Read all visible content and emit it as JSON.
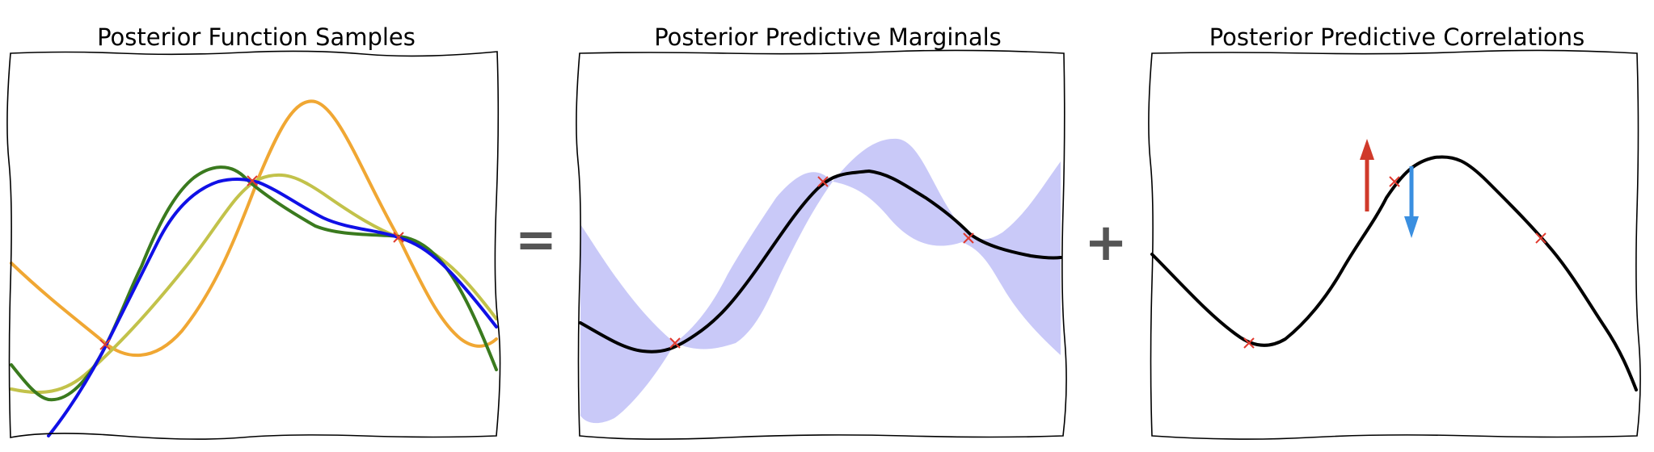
{
  "panels": {
    "samples": {
      "title": "Posterior Function Samples"
    },
    "marginals": {
      "title": "Posterior Predictive Marginals"
    },
    "correlations": {
      "title": "Posterior Predictive Correlations"
    }
  },
  "operators": {
    "equals": "=",
    "plus": "+"
  },
  "colors": {
    "sample_blue": "#1010e6",
    "sample_green": "#3a7a1e",
    "sample_olive": "#c2c24a",
    "sample_orange": "#f0a733",
    "mean": "#000000",
    "band": "#c9c9f8",
    "observation": "#e03a2f",
    "arrow_up": "#d03a2a",
    "arrow_down": "#3a8fe0",
    "operator": "#555555"
  },
  "icons": {
    "observation": "red-x-marker",
    "arrow_up": "red-up-arrow",
    "arrow_down": "blue-down-arrow"
  }
}
